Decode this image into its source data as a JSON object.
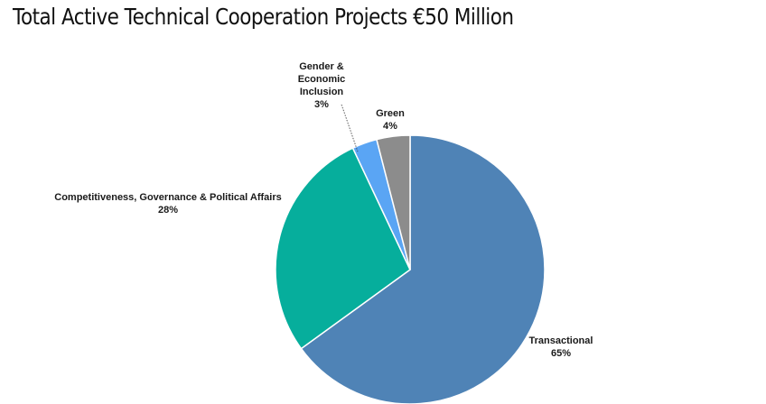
{
  "chart_data": {
    "type": "pie",
    "title": "Total Active Technical Cooperation Projects €50 Million",
    "slices": [
      {
        "label_lines": [
          "Transactional"
        ],
        "percent_label": "65%",
        "value": 65,
        "color": "#4f83b6"
      },
      {
        "label_lines": [
          "Competitiveness, Governance & Political Affairs"
        ],
        "percent_label": "28%",
        "value": 28,
        "color": "#06ae9c"
      },
      {
        "label_lines": [
          "Gender &",
          "Economic",
          "Inclusion"
        ],
        "percent_label": "3%",
        "value": 3,
        "color": "#5aa5f4"
      },
      {
        "label_lines": [
          "Green"
        ],
        "percent_label": "4%",
        "value": 4,
        "color": "#8c8c8c"
      }
    ]
  }
}
